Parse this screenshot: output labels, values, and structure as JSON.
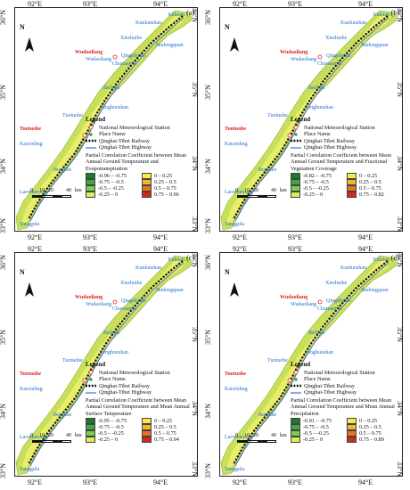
{
  "figure": {
    "axes": {
      "top": [
        "92°E",
        "93°E",
        "94°E"
      ],
      "bottom": [
        "92°E",
        "93°E",
        "94°E"
      ],
      "left": [
        "36°N",
        "35°N",
        "34°N",
        "33°N"
      ],
      "right": [
        "36°N",
        "35°N",
        "34°N",
        "33°N"
      ]
    },
    "north_label": "N",
    "scale": {
      "labels": [
        "0",
        "10",
        "20",
        "40"
      ],
      "unit": "km"
    },
    "places_blue": [
      "Xidatan",
      "Kunlunshan",
      "Xieshuihe",
      "Budongquan",
      "Qingshuihe",
      "Wudaoliang",
      "Chumaerhe",
      "Beiluhe",
      "Fenghuoshan",
      "Tuotuohe",
      "Kaixinling",
      "Buqiuhe",
      "Laowenquan",
      "Tanggula"
    ],
    "places_red": [
      "Wudaoliang",
      "Tuotuohe"
    ],
    "legend": {
      "title": "Legend",
      "station": "National Meteorological Station",
      "place": "Place Name",
      "railway": "Qinghai-Tibet Railway",
      "highway": "Qinghai-Tibet Highway"
    },
    "colors": {
      "railway": "#111111",
      "highway": "#1f4fd8",
      "place_blue": "#1f6fd1",
      "place_red": "#e02020",
      "class_colors": [
        "#1a7a2e",
        "#3aa83a",
        "#7ccd4a",
        "#d8ee60",
        "#f7ea4a",
        "#f3b52e",
        "#e8751e",
        "#cf2b1c"
      ]
    },
    "panels": [
      {
        "label": "(a)",
        "variable": "Partial Correlation Coefficient between Mean Annual Ground Temperature and Evapotranspiration",
        "classes": [
          "-0.96 – -0.75",
          "0 – 0.25",
          "-0.75 – -0.5",
          "0.25 – 0.5",
          "-0.5 – -0.25",
          "0.5 – 0.75",
          "-0.25 – 0",
          "0.75 – 0.96"
        ]
      },
      {
        "label": "(b)",
        "variable": "Partial Correlation Coefficient between Mean Annual Ground Temperature and Fractional Vegetation Coverage",
        "classes": [
          "-0.82 – -0.75",
          "0 – 0.25",
          "-0.75 – -0.5",
          "0.25 – 0.5",
          "-0.5 – -0.25",
          "0.5 – 0.75",
          "-0.25 – 0",
          "0.75 – 0.82"
        ]
      },
      {
        "label": "(c)",
        "variable": "Partial Correlation Coefficient between Mean Annual Ground Temperature and Mean Annual Surface Temperature",
        "classes": [
          "-0.95 – -0.75",
          "0 – 0.25",
          "-0.75 – -0.5",
          "0.25 – 0.5",
          "-0.5 – -0.25",
          "0.5 – 0.75",
          "-0.25 – 0",
          "0.75 – 0.94"
        ]
      },
      {
        "label": "(d)",
        "variable": "Partial Correlation Coefficient between Mean Annual Ground Temperature and Mean Annual Precipitation",
        "classes": [
          "-0.91 – -0.75",
          "0 – 0.25",
          "-0.75 – -0.5",
          "0.25 – 0.5",
          "-0.5 – -0.25",
          "0.5 – 0.75",
          "-0.25 – 0",
          "0.75 – 0.89"
        ]
      }
    ]
  }
}
